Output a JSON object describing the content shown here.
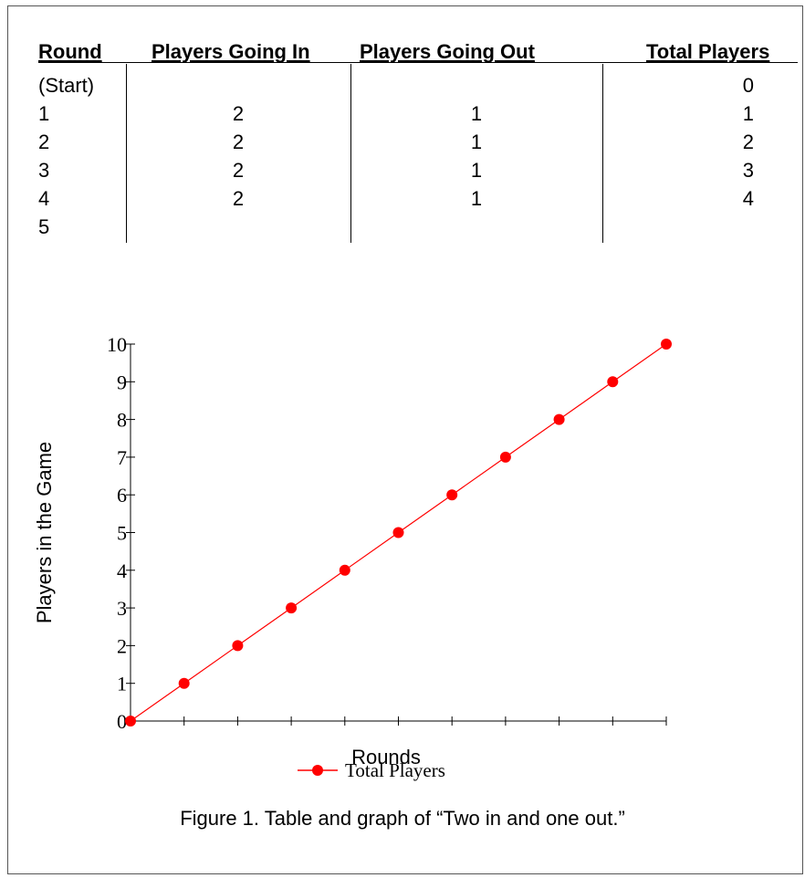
{
  "table": {
    "headers": [
      "Round",
      "Players Going In",
      "Players Going Out",
      "Total Players"
    ],
    "rows": [
      [
        "(Start)",
        "",
        "",
        "0"
      ],
      [
        "1",
        "2",
        "1",
        "1"
      ],
      [
        "2",
        "2",
        "1",
        "2"
      ],
      [
        "3",
        "2",
        "1",
        "3"
      ],
      [
        "4",
        "2",
        "1",
        "4"
      ],
      [
        "5",
        "",
        "",
        ""
      ]
    ]
  },
  "chart_data": {
    "type": "line",
    "title": "",
    "xlabel": "Rounds",
    "ylabel": "Players in the Game",
    "x": [
      0,
      1,
      2,
      3,
      4,
      5,
      6,
      7,
      8,
      9,
      10
    ],
    "series": [
      {
        "name": "Total Players",
        "values": [
          0,
          1,
          2,
          3,
          4,
          5,
          6,
          7,
          8,
          9,
          10
        ],
        "color": "#ff0000"
      }
    ],
    "xlim": [
      0,
      10
    ],
    "ylim": [
      0,
      10
    ],
    "yticks": [
      "0",
      "1",
      "2",
      "3",
      "4",
      "5",
      "6",
      "7",
      "8",
      "9",
      "10"
    ],
    "x_tick_labels_shown": false,
    "grid": false,
    "legend": "bottom-center"
  },
  "caption": "Figure 1. Table and graph of “Two in and one out.”"
}
